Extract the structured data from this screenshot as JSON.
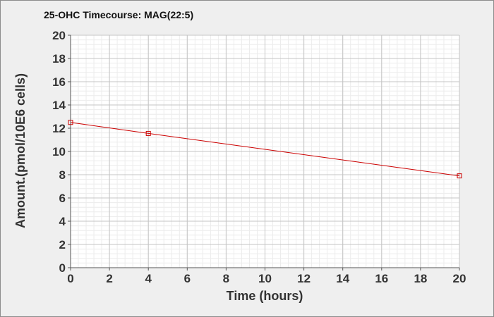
{
  "chart_data": {
    "type": "line",
    "title": "25-OHC Timecourse: MAG(22:5)",
    "xlabel": "Time (hours)",
    "ylabel": "Amount.(pmol/10E6 cells)",
    "xlim": [
      0,
      20
    ],
    "ylim": [
      0,
      20
    ],
    "xticks": [
      "0",
      "2",
      "4",
      "6",
      "8",
      "10",
      "12",
      "14",
      "16",
      "18",
      "20"
    ],
    "yticks": [
      "0",
      "2",
      "4",
      "6",
      "8",
      "10",
      "12",
      "14",
      "16",
      "18",
      "20"
    ],
    "grid": true,
    "series": [
      {
        "x": [
          0,
          4,
          20
        ],
        "y": [
          12.5,
          11.55,
          7.9
        ],
        "color": "#cc0000",
        "marker": "square"
      }
    ]
  }
}
